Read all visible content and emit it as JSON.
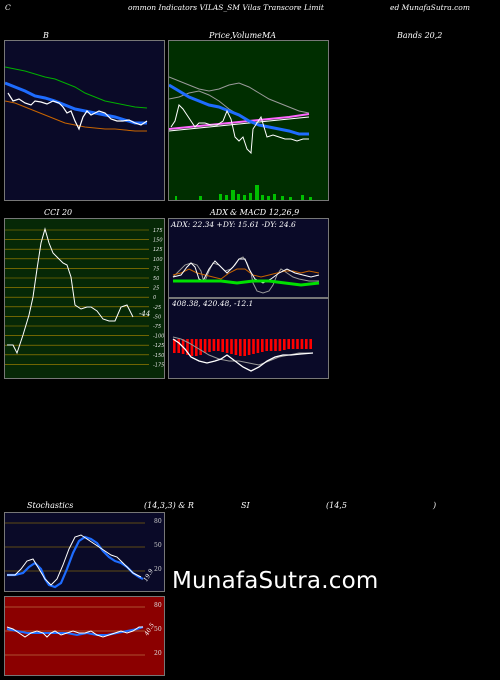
{
  "header": {
    "left": "C",
    "center": "ommon  Indicators VILAS_SM Vilas Transcore  Limit",
    "right": "ed MunafaSutra.com"
  },
  "row1": {
    "label_b": "B",
    "label_price": "Price,",
    "label_volume": "Volume",
    "label_ma": "MA",
    "label_bands": "Bands 20,2"
  },
  "cci": {
    "title": "CCI 20",
    "ticks": [
      "175",
      "150",
      "125",
      "100",
      "75",
      "50",
      "25",
      "0",
      "-25",
      "-50",
      "-75",
      "-100",
      "-125",
      "-150",
      "-175"
    ],
    "value": "-44"
  },
  "adx": {
    "title_left": "ADX",
    "title_right": "& MACD 12,26,9",
    "readout": "ADX: 22.34  +DY: 15.61 -DY: 24.6",
    "macd_readout": "408.38,  420.48,  -12.1"
  },
  "stoch": {
    "title_left": "Stochastics",
    "title_mid": "(14,3,3) & R",
    "title_si": "SI",
    "title_params": "(14,5",
    "title_end": ")",
    "ticks": [
      "80",
      "50",
      "20"
    ],
    "value": "19.9"
  },
  "rsi": {
    "ticks": [
      "80",
      "50",
      "20"
    ],
    "value": "40.5"
  },
  "watermark": "MunafaSutra.com",
  "colors": {
    "bollinger_bg": "#0a0a28",
    "price_bg": "#002e00",
    "cci_bg": "#062806",
    "rsi_bg": "#8b0000",
    "accent_blue": "#1e6cff"
  }
}
